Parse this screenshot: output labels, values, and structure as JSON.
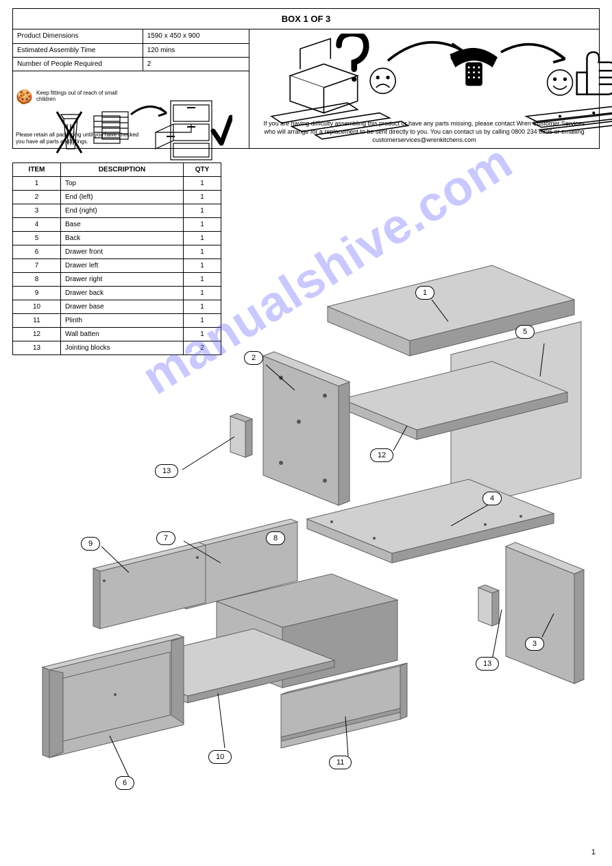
{
  "colors": {
    "panel_light": "#d0d0d0",
    "panel_mid": "#b8b8b8",
    "panel_dark": "#9a9a9a",
    "edge": "#606060",
    "watermark": "rgba(100,100,255,0.35)",
    "line": "#000000",
    "bg": "#ffffff"
  },
  "header": {
    "title": "BOX 1 OF 3"
  },
  "meta_rows": [
    {
      "label": "Product Dimensions",
      "value": "1590 x 450 x 900"
    },
    {
      "label": "Estimated Assembly Time",
      "value": "120 mins"
    },
    {
      "label": "Number of People Required",
      "value": "2"
    }
  ],
  "retain_note": "Please retain all packaging until you have checked you have all parts and fittings.",
  "keep_note": "Keep fittings out of reach of small children",
  "help_text": "If you are having difficulty assembling this product or have any parts missing, please contact Wren Customer Services who will arrange for a replacement to be sent directly to you. You can contact us by calling 0800 234 6896 or emailing customerservices@wrenkitchens.com",
  "parts_table": {
    "headers": [
      "ITEM",
      "DESCRIPTION",
      "QTY"
    ],
    "rows": [
      [
        "1",
        "Top",
        "1"
      ],
      [
        "2",
        "End (left)",
        "1"
      ],
      [
        "3",
        "End (right)",
        "1"
      ],
      [
        "4",
        "Base",
        "1"
      ],
      [
        "5",
        "Back",
        "1"
      ],
      [
        "6",
        "Drawer front",
        "1"
      ],
      [
        "7",
        "Drawer left",
        "1"
      ],
      [
        "8",
        "Drawer right",
        "1"
      ],
      [
        "9",
        "Drawer back",
        "1"
      ],
      [
        "10",
        "Drawer base",
        "1"
      ],
      [
        "11",
        "Plinth",
        "1"
      ],
      [
        "12",
        "Wall batten",
        "1"
      ],
      [
        "13",
        "Jointing blocks",
        "2"
      ]
    ]
  },
  "callouts": {
    "c1": "1",
    "c2": "2",
    "c3": "3",
    "c4": "4",
    "c5": "5",
    "c6": "6",
    "c7": "7",
    "c8": "8",
    "c9": "9",
    "c10": "10",
    "c11": "11",
    "c12": "12",
    "c13a": "13",
    "c13b": "13"
  },
  "page_number": "1",
  "watermark": "manualshive.com"
}
